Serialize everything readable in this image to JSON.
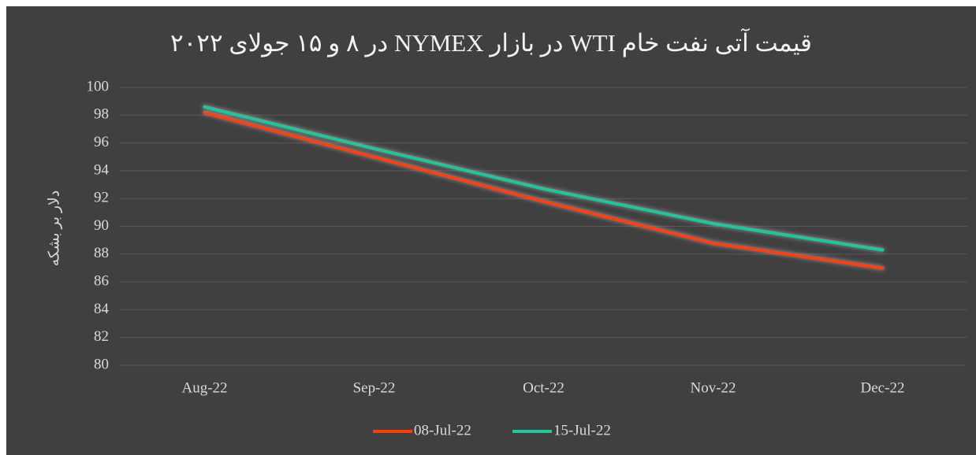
{
  "chart_data": {
    "type": "line",
    "title": "قیمت آتی نفت خام WTI در بازار NYMEX در ۸ و ۱۵ جولای ۲۰۲۲",
    "y_label": "دلار بر بشکه",
    "categories": [
      "Aug-22",
      "Sep-22",
      "Oct-22",
      "Nov-22",
      "Dec-22"
    ],
    "series": [
      {
        "name": "08-Jul-22",
        "color": "#ff3d0a",
        "values": [
          98.2,
          95.0,
          91.8,
          88.8,
          87.0
        ]
      },
      {
        "name": "15-Jul-22",
        "color": "#1fc79a",
        "values": [
          98.6,
          95.6,
          92.7,
          90.2,
          88.3
        ]
      }
    ],
    "ylim": [
      80,
      100
    ],
    "yticks": [
      80,
      82,
      84,
      86,
      88,
      90,
      92,
      94,
      96,
      98,
      100
    ],
    "grid": true,
    "legend": "bottom"
  }
}
